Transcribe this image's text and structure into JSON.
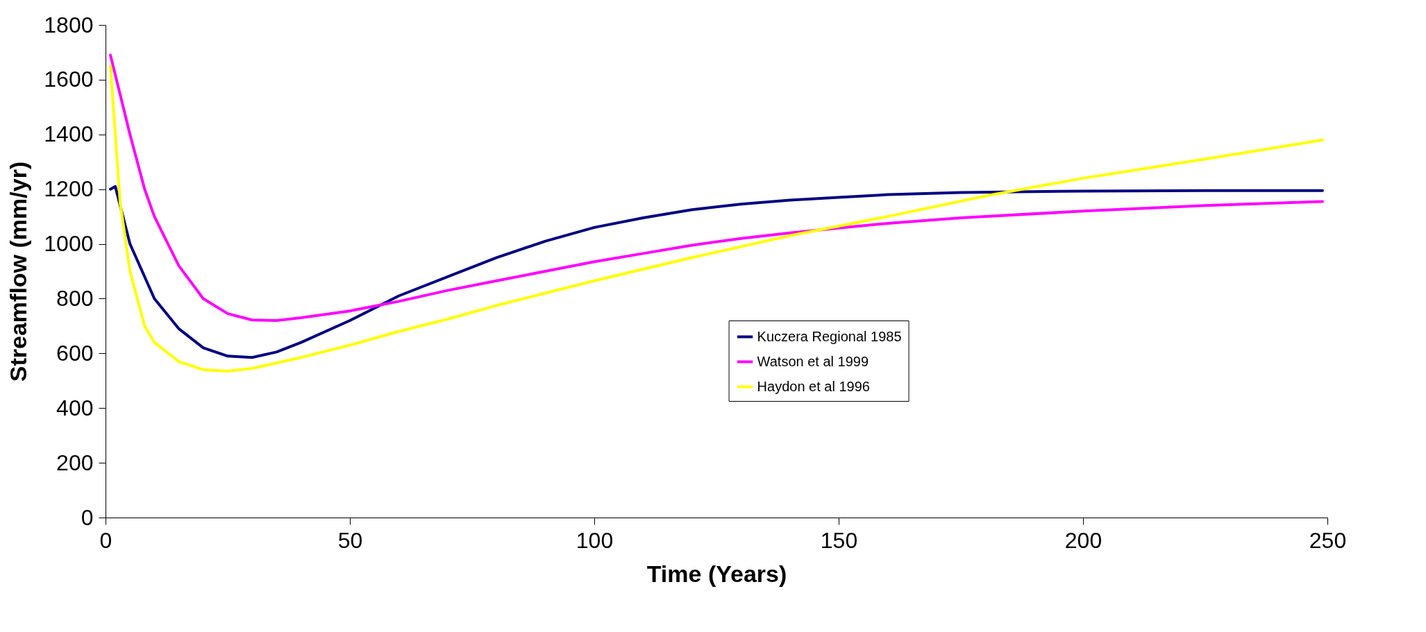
{
  "chart_data": {
    "type": "line",
    "xlabel": "Time (Years)",
    "ylabel": "Streamflow (mm/yr)",
    "xlim": [
      0,
      250
    ],
    "xticks": [
      0,
      50,
      100,
      150,
      200,
      250
    ],
    "ylim": [
      0,
      1800
    ],
    "yticks": [
      0,
      200,
      400,
      600,
      800,
      1000,
      1200,
      1400,
      1600,
      1800
    ],
    "grid": false,
    "legend": "center",
    "line_style": "solid",
    "marker": "none",
    "series": [
      {
        "name": "Kuczera Regional 1985",
        "color": "#000080",
        "x": [
          1,
          2,
          5,
          10,
          15,
          20,
          25,
          30,
          35,
          40,
          50,
          60,
          70,
          80,
          90,
          100,
          110,
          120,
          130,
          140,
          150,
          160,
          175,
          200,
          225,
          249
        ],
        "values": [
          1200,
          1210,
          1000,
          800,
          690,
          620,
          590,
          585,
          605,
          640,
          720,
          810,
          880,
          950,
          1010,
          1060,
          1095,
          1125,
          1145,
          1160,
          1170,
          1180,
          1188,
          1193,
          1195,
          1195
        ]
      },
      {
        "name": "Watson et al 1999",
        "color": "#ff00ff",
        "x": [
          1,
          5,
          8,
          10,
          15,
          20,
          25,
          30,
          35,
          40,
          50,
          60,
          70,
          80,
          90,
          100,
          110,
          120,
          130,
          140,
          150,
          160,
          175,
          200,
          225,
          249
        ],
        "values": [
          1690,
          1400,
          1200,
          1100,
          920,
          800,
          745,
          722,
          720,
          730,
          755,
          790,
          830,
          865,
          900,
          935,
          965,
          995,
          1020,
          1040,
          1058,
          1075,
          1095,
          1120,
          1140,
          1155
        ]
      },
      {
        "name": "Haydon et al 1996",
        "color": "#ffff00",
        "x": [
          1,
          3,
          5,
          8,
          10,
          15,
          20,
          25,
          30,
          40,
          50,
          60,
          70,
          80,
          90,
          100,
          120,
          140,
          160,
          180,
          200,
          225,
          249
        ],
        "values": [
          1650,
          1150,
          900,
          700,
          640,
          570,
          540,
          535,
          545,
          585,
          630,
          680,
          725,
          775,
          820,
          865,
          950,
          1030,
          1100,
          1175,
          1240,
          1310,
          1380
        ]
      }
    ]
  }
}
